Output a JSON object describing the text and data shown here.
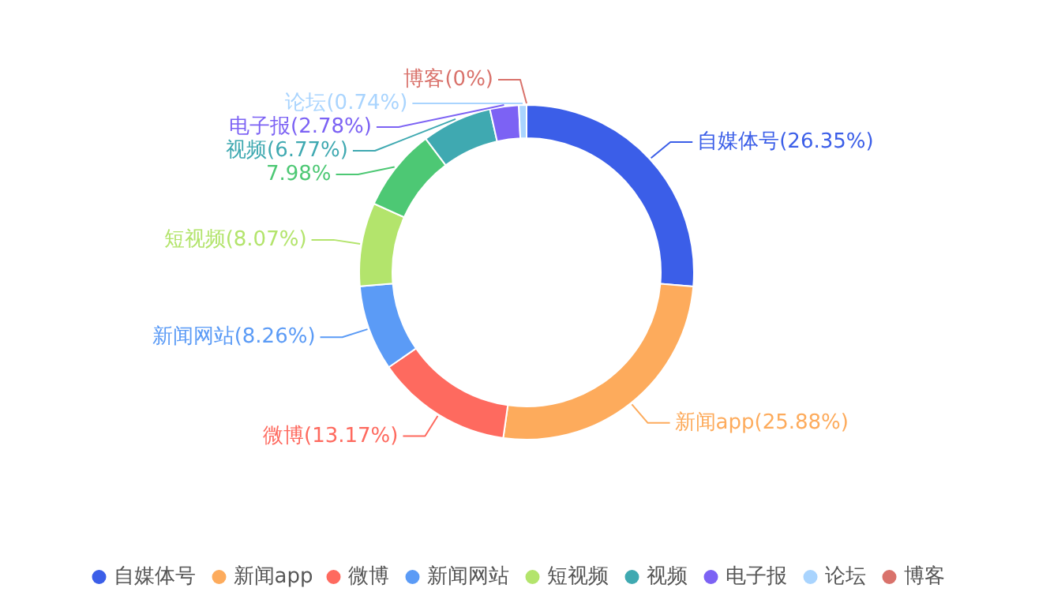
{
  "chart_data": {
    "type": "donut",
    "categories": [
      "自媒体号",
      "新闻app",
      "微博",
      "新闻网站",
      "短视频",
      null,
      "视频",
      "电子报",
      "论坛",
      "博客"
    ],
    "values": [
      26.35,
      25.88,
      13.17,
      8.26,
      8.07,
      7.98,
      6.77,
      2.78,
      0.74,
      0
    ],
    "colors": [
      "#3b5ee8",
      "#fdab5c",
      "#fe6a5f",
      "#5b9bf6",
      "#b3e46c",
      "#4dc874",
      "#3fa9b1",
      "#7c62f4",
      "#a9d4fe",
      "#d9726b"
    ],
    "value_labels": [
      "自媒体号(26.35%)",
      "新闻app(25.88%)",
      "微博(13.17%)",
      "新闻网站(8.26%)",
      "短视频(8.07%)",
      "7.98%",
      "视频(6.77%)",
      "电子报(2.78%)",
      "论坛(0.74%)",
      "博客(0%)"
    ],
    "legend": "bottom"
  }
}
